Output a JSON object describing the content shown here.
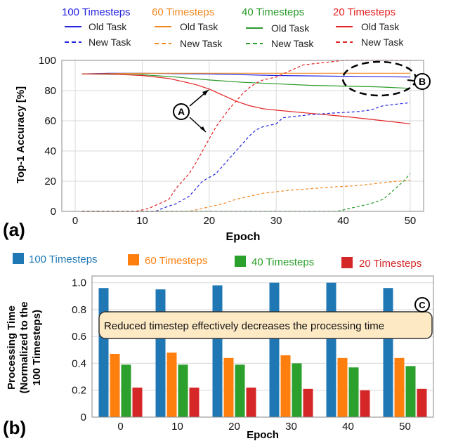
{
  "colors": {
    "t100": "#2323e0",
    "t60": "#f08a24",
    "t40": "#2a9a2a",
    "t20": "#e52222",
    "bar100": "#1f77b4",
    "bar60": "#ff7f0e",
    "bar40": "#2ca02c",
    "bar20": "#d62728",
    "callout_fill": "#fde9c4",
    "callout_stroke": "#333333"
  },
  "chart_data": [
    {
      "type": "line",
      "panel_label": "(a)",
      "xlabel": "Epoch",
      "ylabel": "Top-1 Accuracy [%]",
      "xlim": [
        -2,
        52
      ],
      "ylim": [
        0,
        100
      ],
      "xticks": [
        0,
        10,
        20,
        30,
        40,
        50
      ],
      "yticks": [
        0,
        20,
        40,
        60,
        80,
        100
      ],
      "grid": true,
      "legend": [
        {
          "group": "100 Timesteps",
          "old": "Old Task",
          "new": "New Task"
        },
        {
          "group": "60 Timesteps",
          "old": "Old Task",
          "new": "New Task"
        },
        {
          "group": "40 Timesteps",
          "old": "Old Task",
          "new": "New Task"
        },
        {
          "group": "20 Timesteps",
          "old": "Old Task",
          "new": "New Task"
        }
      ],
      "annotations": [
        "A",
        "B"
      ],
      "series": [
        {
          "name": "100 Timesteps Old Task",
          "color_key": "t100",
          "style": "solid",
          "points": [
            [
              1,
              91
            ],
            [
              5,
              91.5
            ],
            [
              10,
              91.5
            ],
            [
              20,
              91
            ],
            [
              30,
              90
            ],
            [
              40,
              89.5
            ],
            [
              50,
              89
            ]
          ]
        },
        {
          "name": "60 Timesteps Old Task",
          "color_key": "t60",
          "style": "solid",
          "points": [
            [
              1,
              91
            ],
            [
              10,
              91.5
            ],
            [
              20,
              91.5
            ],
            [
              30,
              91.5
            ],
            [
              40,
              91.5
            ],
            [
              50,
              91.5
            ]
          ]
        },
        {
          "name": "40 Timesteps Old Task",
          "color_key": "t40",
          "style": "solid",
          "points": [
            [
              1,
              91
            ],
            [
              10,
              90.5
            ],
            [
              15,
              89
            ],
            [
              20,
              87
            ],
            [
              25,
              85.5
            ],
            [
              30,
              84.5
            ],
            [
              35,
              83.5
            ],
            [
              40,
              83
            ],
            [
              45,
              82.5
            ],
            [
              50,
              81.5
            ]
          ]
        },
        {
          "name": "20 Timesteps Old Task",
          "color_key": "t20",
          "style": "solid",
          "points": [
            [
              1,
              91
            ],
            [
              5,
              91
            ],
            [
              10,
              90
            ],
            [
              14,
              88
            ],
            [
              16,
              86
            ],
            [
              18,
              84
            ],
            [
              20,
              81
            ],
            [
              22,
              77
            ],
            [
              24,
              73
            ],
            [
              26,
              70
            ],
            [
              28,
              68
            ],
            [
              30,
              67
            ],
            [
              35,
              65
            ],
            [
              40,
              63
            ],
            [
              45,
              60.5
            ],
            [
              50,
              58
            ]
          ]
        },
        {
          "name": "100 Timesteps New Task",
          "color_key": "t100",
          "style": "dashed",
          "points": [
            [
              1,
              0
            ],
            [
              12,
              0
            ],
            [
              13,
              2
            ],
            [
              15,
              5
            ],
            [
              17,
              10
            ],
            [
              19,
              20
            ],
            [
              21,
              25
            ],
            [
              22,
              30
            ],
            [
              23,
              35
            ],
            [
              24,
              40
            ],
            [
              25,
              45
            ],
            [
              26,
              50
            ],
            [
              27,
              54
            ],
            [
              28,
              56
            ],
            [
              30,
              58
            ],
            [
              31,
              62
            ],
            [
              35,
              64
            ],
            [
              38,
              65
            ],
            [
              42,
              66
            ],
            [
              44,
              67
            ],
            [
              46,
              70
            ],
            [
              48,
              71
            ],
            [
              50,
              72
            ]
          ]
        },
        {
          "name": "60 Timesteps New Task",
          "color_key": "t60",
          "style": "dashed",
          "points": [
            [
              1,
              0
            ],
            [
              17,
              0
            ],
            [
              18,
              1
            ],
            [
              20,
              3
            ],
            [
              22,
              5
            ],
            [
              24,
              8
            ],
            [
              26,
              10
            ],
            [
              28,
              12
            ],
            [
              30,
              13
            ],
            [
              32,
              14
            ],
            [
              35,
              15
            ],
            [
              38,
              16
            ],
            [
              42,
              17
            ],
            [
              44,
              18
            ],
            [
              46,
              19
            ],
            [
              48,
              20
            ],
            [
              50,
              20.5
            ]
          ]
        },
        {
          "name": "40 Timesteps New Task",
          "color_key": "t40",
          "style": "dashed",
          "points": [
            [
              1,
              0
            ],
            [
              39,
              0
            ],
            [
              40,
              1
            ],
            [
              42,
              3
            ],
            [
              44,
              5
            ],
            [
              46,
              8
            ],
            [
              47,
              12
            ],
            [
              48,
              16
            ],
            [
              49,
              20
            ],
            [
              50,
              25
            ]
          ]
        },
        {
          "name": "20 Timesteps New Task",
          "color_key": "t20",
          "style": "dashed",
          "points": [
            [
              1,
              0
            ],
            [
              9,
              0
            ],
            [
              10,
              1
            ],
            [
              11,
              2
            ],
            [
              12,
              4
            ],
            [
              14,
              8
            ],
            [
              15,
              15
            ],
            [
              16,
              20
            ],
            [
              17,
              25
            ],
            [
              18,
              32
            ],
            [
              19,
              40
            ],
            [
              20,
              48
            ],
            [
              21,
              56
            ],
            [
              22,
              62
            ],
            [
              23,
              68
            ],
            [
              24,
              73
            ],
            [
              25,
              78
            ],
            [
              26,
              82
            ],
            [
              27,
              85
            ],
            [
              28,
              87
            ],
            [
              30,
              89
            ],
            [
              32,
              93
            ],
            [
              34,
              97
            ],
            [
              36,
              98
            ],
            [
              38,
              99
            ],
            [
              40,
              100
            ],
            [
              50,
              100
            ]
          ]
        }
      ]
    },
    {
      "type": "bar",
      "panel_label": "(b)",
      "xlabel": "Epoch",
      "ylabel_line1": "Processing Time",
      "ylabel_line2": "(Normalized to the",
      "ylabel_line3": "100 Timesteps)",
      "ylim": [
        0,
        1.05
      ],
      "yticks": [
        0,
        0.2,
        0.4,
        0.6,
        0.8,
        1.0
      ],
      "ytick_labels": [
        "0",
        "0.2",
        "0.4",
        "0.6",
        "0.8",
        "1.0"
      ],
      "categories": [
        "0",
        "10",
        "20",
        "30",
        "40",
        "50"
      ],
      "grid": true,
      "series": [
        {
          "name": "100 Timesteps",
          "color_key": "bar100",
          "values": [
            0.96,
            0.95,
            0.98,
            1.0,
            1.0,
            0.96
          ]
        },
        {
          "name": "60 Timesteps",
          "color_key": "bar60",
          "values": [
            0.47,
            0.48,
            0.44,
            0.46,
            0.44,
            0.44
          ]
        },
        {
          "name": "40 Timesteps",
          "color_key": "bar40",
          "values": [
            0.39,
            0.39,
            0.39,
            0.4,
            0.37,
            0.38
          ]
        },
        {
          "name": "20 Timesteps",
          "color_key": "bar20",
          "values": [
            0.22,
            0.22,
            0.22,
            0.21,
            0.2,
            0.21
          ]
        }
      ],
      "callout": {
        "label": "C",
        "text": "Reduced timestep effectively decreases the processing time"
      }
    }
  ]
}
